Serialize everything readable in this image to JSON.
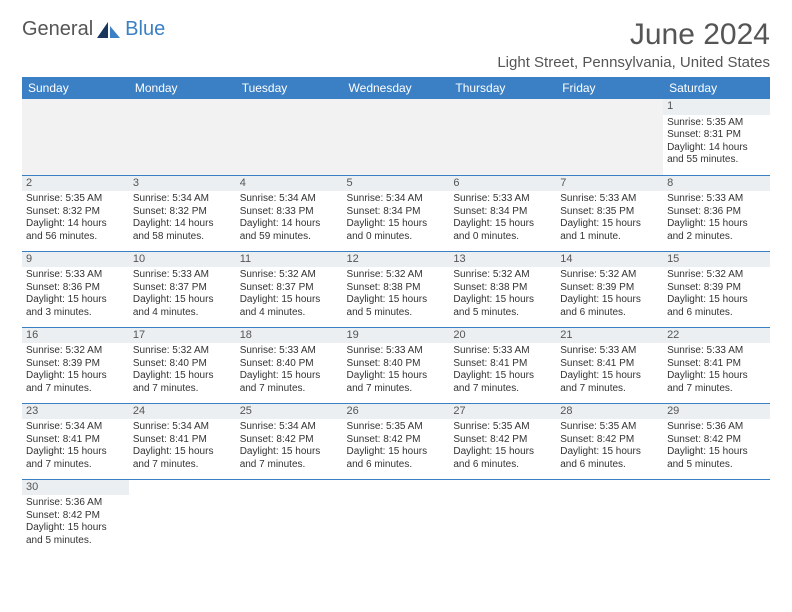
{
  "logo": {
    "text1": "General",
    "text2": "Blue"
  },
  "header": {
    "month_title": "June 2024",
    "location": "Light Street, Pennsylvania, United States"
  },
  "colors": {
    "header_bg": "#3b7fc4",
    "header_text": "#ffffff",
    "daynum_bg": "#eceff1",
    "row_border": "#3b7fc4",
    "logo_blue": "#3b7fc4",
    "text": "#333333"
  },
  "weekdays": [
    "Sunday",
    "Monday",
    "Tuesday",
    "Wednesday",
    "Thursday",
    "Friday",
    "Saturday"
  ],
  "grid": [
    [
      {
        "empty": true
      },
      {
        "empty": true
      },
      {
        "empty": true
      },
      {
        "empty": true
      },
      {
        "empty": true
      },
      {
        "empty": true
      },
      {
        "day": "1",
        "sunrise": "Sunrise: 5:35 AM",
        "sunset": "Sunset: 8:31 PM",
        "daylight1": "Daylight: 14 hours",
        "daylight2": "and 55 minutes."
      }
    ],
    [
      {
        "day": "2",
        "sunrise": "Sunrise: 5:35 AM",
        "sunset": "Sunset: 8:32 PM",
        "daylight1": "Daylight: 14 hours",
        "daylight2": "and 56 minutes."
      },
      {
        "day": "3",
        "sunrise": "Sunrise: 5:34 AM",
        "sunset": "Sunset: 8:32 PM",
        "daylight1": "Daylight: 14 hours",
        "daylight2": "and 58 minutes."
      },
      {
        "day": "4",
        "sunrise": "Sunrise: 5:34 AM",
        "sunset": "Sunset: 8:33 PM",
        "daylight1": "Daylight: 14 hours",
        "daylight2": "and 59 minutes."
      },
      {
        "day": "5",
        "sunrise": "Sunrise: 5:34 AM",
        "sunset": "Sunset: 8:34 PM",
        "daylight1": "Daylight: 15 hours",
        "daylight2": "and 0 minutes."
      },
      {
        "day": "6",
        "sunrise": "Sunrise: 5:33 AM",
        "sunset": "Sunset: 8:34 PM",
        "daylight1": "Daylight: 15 hours",
        "daylight2": "and 0 minutes."
      },
      {
        "day": "7",
        "sunrise": "Sunrise: 5:33 AM",
        "sunset": "Sunset: 8:35 PM",
        "daylight1": "Daylight: 15 hours",
        "daylight2": "and 1 minute."
      },
      {
        "day": "8",
        "sunrise": "Sunrise: 5:33 AM",
        "sunset": "Sunset: 8:36 PM",
        "daylight1": "Daylight: 15 hours",
        "daylight2": "and 2 minutes."
      }
    ],
    [
      {
        "day": "9",
        "sunrise": "Sunrise: 5:33 AM",
        "sunset": "Sunset: 8:36 PM",
        "daylight1": "Daylight: 15 hours",
        "daylight2": "and 3 minutes."
      },
      {
        "day": "10",
        "sunrise": "Sunrise: 5:33 AM",
        "sunset": "Sunset: 8:37 PM",
        "daylight1": "Daylight: 15 hours",
        "daylight2": "and 4 minutes."
      },
      {
        "day": "11",
        "sunrise": "Sunrise: 5:32 AM",
        "sunset": "Sunset: 8:37 PM",
        "daylight1": "Daylight: 15 hours",
        "daylight2": "and 4 minutes."
      },
      {
        "day": "12",
        "sunrise": "Sunrise: 5:32 AM",
        "sunset": "Sunset: 8:38 PM",
        "daylight1": "Daylight: 15 hours",
        "daylight2": "and 5 minutes."
      },
      {
        "day": "13",
        "sunrise": "Sunrise: 5:32 AM",
        "sunset": "Sunset: 8:38 PM",
        "daylight1": "Daylight: 15 hours",
        "daylight2": "and 5 minutes."
      },
      {
        "day": "14",
        "sunrise": "Sunrise: 5:32 AM",
        "sunset": "Sunset: 8:39 PM",
        "daylight1": "Daylight: 15 hours",
        "daylight2": "and 6 minutes."
      },
      {
        "day": "15",
        "sunrise": "Sunrise: 5:32 AM",
        "sunset": "Sunset: 8:39 PM",
        "daylight1": "Daylight: 15 hours",
        "daylight2": "and 6 minutes."
      }
    ],
    [
      {
        "day": "16",
        "sunrise": "Sunrise: 5:32 AM",
        "sunset": "Sunset: 8:39 PM",
        "daylight1": "Daylight: 15 hours",
        "daylight2": "and 7 minutes."
      },
      {
        "day": "17",
        "sunrise": "Sunrise: 5:32 AM",
        "sunset": "Sunset: 8:40 PM",
        "daylight1": "Daylight: 15 hours",
        "daylight2": "and 7 minutes."
      },
      {
        "day": "18",
        "sunrise": "Sunrise: 5:33 AM",
        "sunset": "Sunset: 8:40 PM",
        "daylight1": "Daylight: 15 hours",
        "daylight2": "and 7 minutes."
      },
      {
        "day": "19",
        "sunrise": "Sunrise: 5:33 AM",
        "sunset": "Sunset: 8:40 PM",
        "daylight1": "Daylight: 15 hours",
        "daylight2": "and 7 minutes."
      },
      {
        "day": "20",
        "sunrise": "Sunrise: 5:33 AM",
        "sunset": "Sunset: 8:41 PM",
        "daylight1": "Daylight: 15 hours",
        "daylight2": "and 7 minutes."
      },
      {
        "day": "21",
        "sunrise": "Sunrise: 5:33 AM",
        "sunset": "Sunset: 8:41 PM",
        "daylight1": "Daylight: 15 hours",
        "daylight2": "and 7 minutes."
      },
      {
        "day": "22",
        "sunrise": "Sunrise: 5:33 AM",
        "sunset": "Sunset: 8:41 PM",
        "daylight1": "Daylight: 15 hours",
        "daylight2": "and 7 minutes."
      }
    ],
    [
      {
        "day": "23",
        "sunrise": "Sunrise: 5:34 AM",
        "sunset": "Sunset: 8:41 PM",
        "daylight1": "Daylight: 15 hours",
        "daylight2": "and 7 minutes."
      },
      {
        "day": "24",
        "sunrise": "Sunrise: 5:34 AM",
        "sunset": "Sunset: 8:41 PM",
        "daylight1": "Daylight: 15 hours",
        "daylight2": "and 7 minutes."
      },
      {
        "day": "25",
        "sunrise": "Sunrise: 5:34 AM",
        "sunset": "Sunset: 8:42 PM",
        "daylight1": "Daylight: 15 hours",
        "daylight2": "and 7 minutes."
      },
      {
        "day": "26",
        "sunrise": "Sunrise: 5:35 AM",
        "sunset": "Sunset: 8:42 PM",
        "daylight1": "Daylight: 15 hours",
        "daylight2": "and 6 minutes."
      },
      {
        "day": "27",
        "sunrise": "Sunrise: 5:35 AM",
        "sunset": "Sunset: 8:42 PM",
        "daylight1": "Daylight: 15 hours",
        "daylight2": "and 6 minutes."
      },
      {
        "day": "28",
        "sunrise": "Sunrise: 5:35 AM",
        "sunset": "Sunset: 8:42 PM",
        "daylight1": "Daylight: 15 hours",
        "daylight2": "and 6 minutes."
      },
      {
        "day": "29",
        "sunrise": "Sunrise: 5:36 AM",
        "sunset": "Sunset: 8:42 PM",
        "daylight1": "Daylight: 15 hours",
        "daylight2": "and 5 minutes."
      }
    ],
    [
      {
        "day": "30",
        "sunrise": "Sunrise: 5:36 AM",
        "sunset": "Sunset: 8:42 PM",
        "daylight1": "Daylight: 15 hours",
        "daylight2": "and 5 minutes."
      },
      {
        "empty": true
      },
      {
        "empty": true
      },
      {
        "empty": true
      },
      {
        "empty": true
      },
      {
        "empty": true
      },
      {
        "empty": true
      }
    ]
  ]
}
